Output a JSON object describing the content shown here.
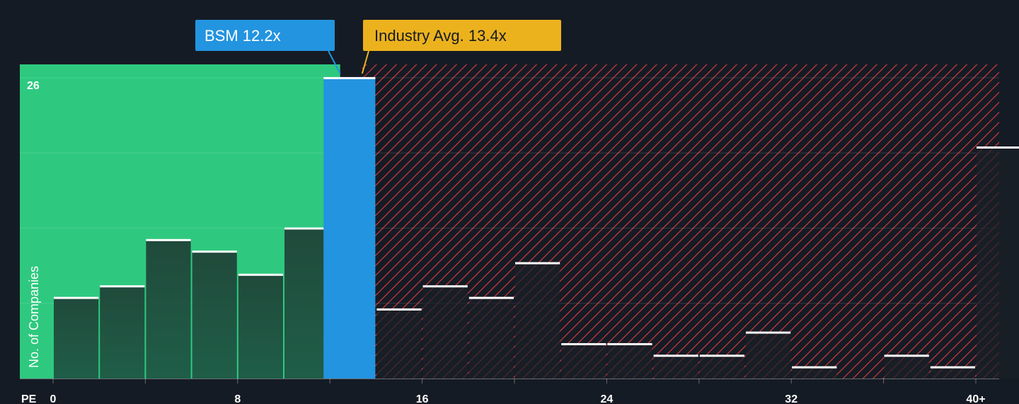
{
  "chart_data": {
    "type": "bar",
    "title": "",
    "xlabel": "PE",
    "ylabel": "No. of Companies",
    "x_tick_labels": [
      "0",
      "8",
      "16",
      "24",
      "32",
      "40+"
    ],
    "x_tick_values": [
      0,
      8,
      16,
      24,
      32,
      40
    ],
    "xlim": [
      0,
      40
    ],
    "bin_width": 2,
    "y_tick_labels": [
      "26"
    ],
    "y_tick_values": [
      26
    ],
    "ylim": [
      0,
      27
    ],
    "grid": true,
    "bins": [
      {
        "start": 0,
        "end": 2,
        "value": 7
      },
      {
        "start": 2,
        "end": 4,
        "value": 8
      },
      {
        "start": 4,
        "end": 6,
        "value": 12
      },
      {
        "start": 6,
        "end": 8,
        "value": 11
      },
      {
        "start": 8,
        "end": 10,
        "value": 9
      },
      {
        "start": 10,
        "end": 12,
        "value": 13
      },
      {
        "start": 12,
        "end": 14,
        "value": 26
      },
      {
        "start": 14,
        "end": 16,
        "value": 6
      },
      {
        "start": 16,
        "end": 18,
        "value": 8
      },
      {
        "start": 18,
        "end": 20,
        "value": 7
      },
      {
        "start": 20,
        "end": 22,
        "value": 10
      },
      {
        "start": 22,
        "end": 24,
        "value": 3
      },
      {
        "start": 24,
        "end": 26,
        "value": 3
      },
      {
        "start": 26,
        "end": 28,
        "value": 2
      },
      {
        "start": 28,
        "end": 30,
        "value": 2
      },
      {
        "start": 30,
        "end": 32,
        "value": 4
      },
      {
        "start": 32,
        "end": 34,
        "value": 1
      },
      {
        "start": 34,
        "end": 36,
        "value": 0
      },
      {
        "start": 36,
        "end": 38,
        "value": 2
      },
      {
        "start": 38,
        "end": 40,
        "value": 1
      },
      {
        "start": 40,
        "end": 42,
        "value": 20
      }
    ],
    "company": {
      "label": "BSM 12.2x",
      "value": 12.2
    },
    "industry": {
      "label": "Industry Avg. 13.4x",
      "value": 13.4
    },
    "colors": {
      "background": "#151b24",
      "below_zone": "#2ec97f",
      "bar_in_zone": "#1e4a39",
      "bar_company": "#2394e0",
      "hatch": "#d0393f",
      "bar_outside": "#1b2027",
      "bar_cap": "#ffffff",
      "company_label_bg": "#2394e0",
      "industry_label_bg": "#ecb21d",
      "axis_text": "#ffffff"
    }
  }
}
